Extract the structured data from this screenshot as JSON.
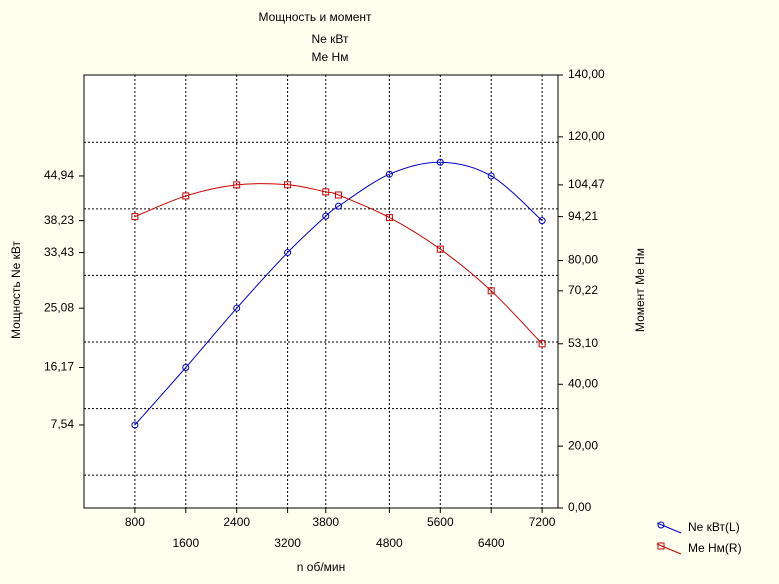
{
  "chart_data": {
    "type": "line",
    "title": "Мощность и момент",
    "subtitle": [
      "Ne кВт",
      "Me Нм"
    ],
    "xlabel": "n об/мин",
    "ylabel": "Мощность Ne кВт",
    "y2label": "Момент Me Нм",
    "x": [
      800,
      1600,
      2400,
      3200,
      3800,
      4000,
      4800,
      5600,
      6400,
      7200
    ],
    "series": [
      {
        "name": "Ne кВт(L)",
        "color": "#0000cc",
        "marker": "circle",
        "values": [
          7.54,
          16.17,
          25.08,
          33.43,
          38.9,
          40.4,
          45.2,
          47.0,
          44.94,
          38.23
        ]
      },
      {
        "name": "Me Нм(R)",
        "color": "#cc0000",
        "marker": "square",
        "axis": "y2",
        "values": [
          94.21,
          100.9,
          104.47,
          104.5,
          102.2,
          101.2,
          93.9,
          83.7,
          70.22,
          53.1
        ]
      }
    ],
    "xlim": [
      0,
      7450
    ],
    "xticks": [
      800,
      1600,
      2400,
      3200,
      3800,
      4800,
      5600,
      6400,
      7200
    ],
    "ylim": [
      -4.93,
      60.1
    ],
    "yticks": [
      {
        "value": 7.54,
        "label": "7,54"
      },
      {
        "value": 16.17,
        "label": "16,17"
      },
      {
        "value": 25.08,
        "label": "25,08"
      },
      {
        "value": 33.43,
        "label": "33,43"
      },
      {
        "value": 38.23,
        "label": "38,23"
      },
      {
        "value": 44.94,
        "label": "44,94"
      }
    ],
    "ygrid": [
      0,
      10,
      20,
      30,
      40,
      50
    ],
    "y2lim": [
      0,
      140
    ],
    "y2ticks": [
      {
        "value": 0,
        "label": "0,00"
      },
      {
        "value": 20,
        "label": "20,00"
      },
      {
        "value": 40,
        "label": "40,00"
      },
      {
        "value": 53.1,
        "label": "53,10"
      },
      {
        "value": 70.22,
        "label": "70,22"
      },
      {
        "value": 80,
        "label": "80,00"
      },
      {
        "value": 94.21,
        "label": "94,21"
      },
      {
        "value": 104.47,
        "label": "104,47"
      },
      {
        "value": 120,
        "label": "120,00"
      },
      {
        "value": 140,
        "label": "140,00"
      }
    ],
    "grid": true,
    "legend": "bottom-right"
  }
}
